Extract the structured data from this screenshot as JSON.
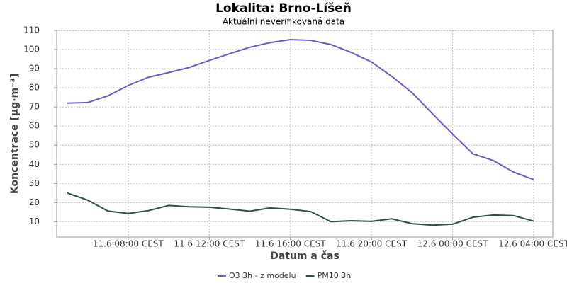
{
  "chart_data": {
    "type": "line",
    "title": "Lokalita: Brno-Líšeň",
    "subtitle": "Aktuální neverifikovaná data",
    "ylabel": "Koncentrace [µg·m⁻³]",
    "xlabel": "Datum a čas",
    "categories": [
      null,
      null,
      null,
      "11.6 08:00 CEST",
      null,
      null,
      null,
      "11.6 12:00 CEST",
      null,
      null,
      null,
      "11.6 16:00 CEST",
      null,
      null,
      null,
      "11.6 20:00 CEST",
      null,
      null,
      null,
      "12.6 00:00 CEST",
      null,
      null,
      null,
      "12.6 04:00 CEST"
    ],
    "series": [
      {
        "name": "O3 3h - z modelu",
        "color": "#6a5acd",
        "values": [
          72,
          72.3,
          75.8,
          81.2,
          85.5,
          88,
          90.6,
          94.3,
          97.8,
          101.2,
          103.6,
          105.2,
          104.8,
          102.6,
          98.5,
          93.5,
          86,
          77.5,
          66.5,
          55.8,
          45.5,
          42,
          36,
          32
        ]
      },
      {
        "name": "PM10 3h",
        "color": "#2f4f4f",
        "values": [
          25,
          21.3,
          15.6,
          14.3,
          15.8,
          18.5,
          17.8,
          17.6,
          16.6,
          15.5,
          17.2,
          16.5,
          15.3,
          10,
          10.5,
          10.2,
          11.5,
          9,
          8.2,
          8.7,
          12.3,
          13.5,
          13.2,
          10.3
        ]
      }
    ],
    "ylim": [
      2,
      110
    ],
    "yticks": [
      10,
      20,
      30,
      40,
      50,
      60,
      70,
      80,
      90,
      100,
      110
    ],
    "grid": true,
    "legend": "bottom"
  }
}
